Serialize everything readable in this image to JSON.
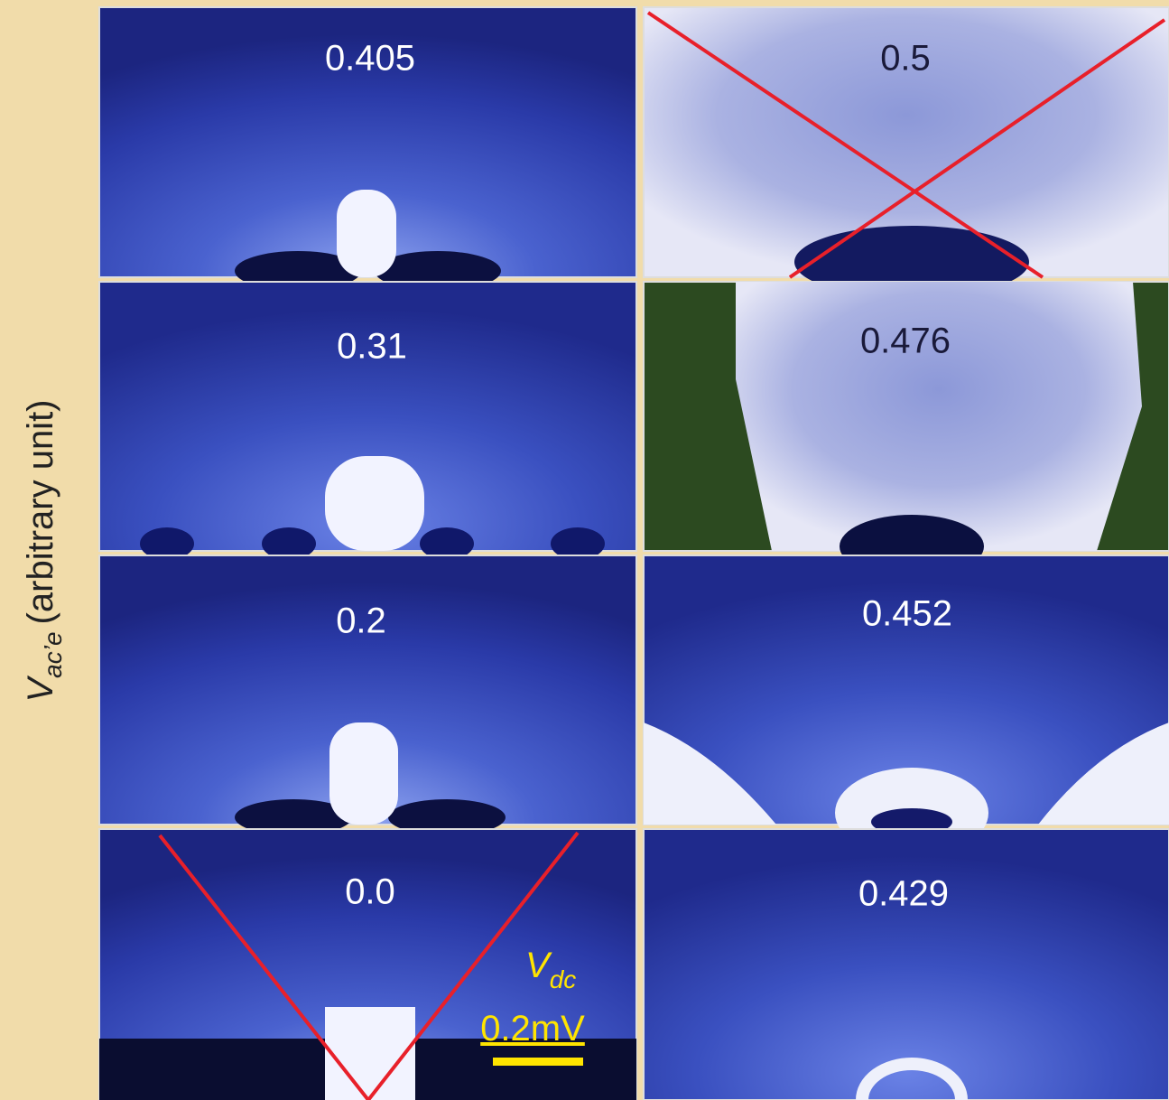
{
  "axis_label": {
    "symbol": "V",
    "subscript": "ac’e",
    "text": "(arbitrary unit)"
  },
  "panels": [
    {
      "label": "0.405"
    },
    {
      "label": "0.5"
    },
    {
      "label": "0.31"
    },
    {
      "label": "0.476"
    },
    {
      "label": "0.2"
    },
    {
      "label": "0.452"
    },
    {
      "label": "0.0"
    },
    {
      "label": "0.429"
    }
  ],
  "scale_bar": {
    "symbol": "V",
    "subscript": "dc",
    "length": "0.2mV"
  }
}
